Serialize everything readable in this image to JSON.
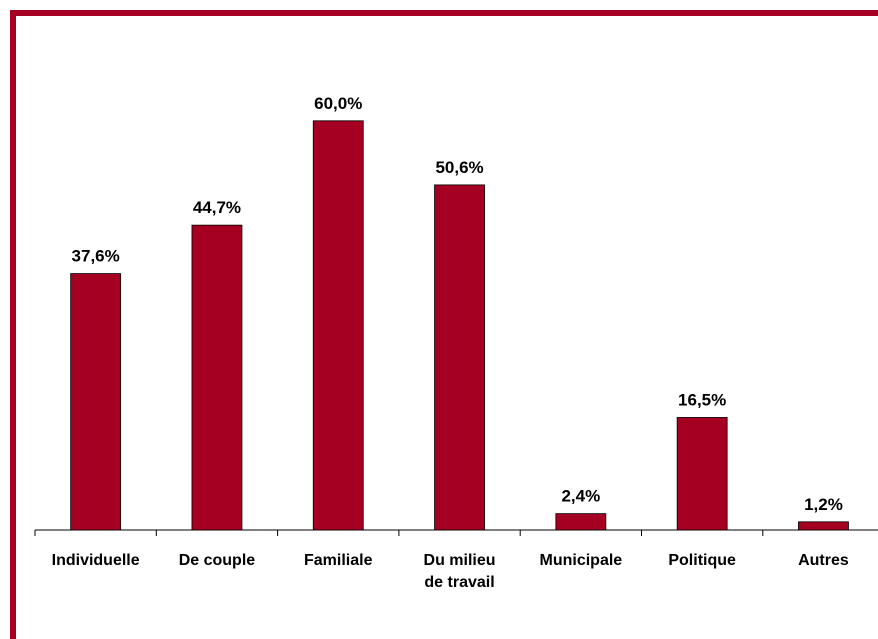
{
  "chart_data": {
    "type": "bar",
    "categories": [
      "Individuelle",
      "De couple",
      "Familiale",
      "Du milieu de travail",
      "Municipale",
      "Politique",
      "Autres"
    ],
    "values": [
      37.6,
      44.7,
      60.0,
      50.6,
      2.4,
      16.5,
      1.2
    ],
    "value_labels": [
      "37,6%",
      "44,7%",
      "60,0%",
      "50,6%",
      "2,4%",
      "16,5%",
      "1,2%"
    ],
    "color": "#a50021"
  }
}
